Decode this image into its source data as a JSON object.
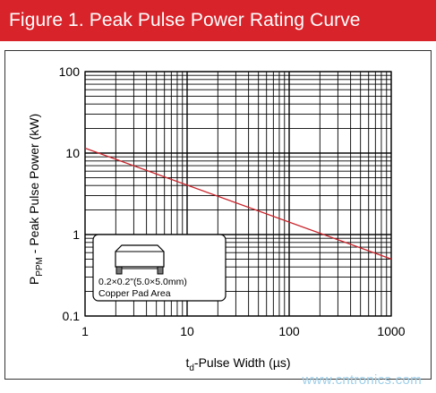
{
  "header": {
    "title": "Figure 1. Peak Pulse Power Rating Curve",
    "background_color": "#d8232a"
  },
  "chart_data": {
    "type": "line",
    "title": "",
    "xlabel": "t_d-Pulse Width (µs)",
    "xlabel_main": "t",
    "xlabel_sub": "d",
    "xlabel_rest": "-Pulse Width (µs)",
    "ylabel": "P_PPM - Peak Pulse Power (kW)",
    "ylabel_main": "P",
    "ylabel_sub": "PPM",
    "ylabel_rest": " - Peak Pulse Power (kW)",
    "x_scale": "log",
    "y_scale": "log",
    "xlim": [
      1,
      1000
    ],
    "ylim": [
      0.1,
      100
    ],
    "x_ticks": [
      "1",
      "10",
      "100",
      "1000"
    ],
    "y_ticks": [
      "100",
      "10",
      "1",
      "0.1"
    ],
    "grid": true,
    "series": [
      {
        "color": "#c9252c",
        "x": [
          1,
          1000
        ],
        "y": [
          11.5,
          0.5
        ]
      }
    ],
    "annotation": {
      "line1": "0.2×0.2\"(5.0×5.0mm)",
      "line2": "Copper Pad Area"
    }
  },
  "watermark": "www.cntronics.com"
}
